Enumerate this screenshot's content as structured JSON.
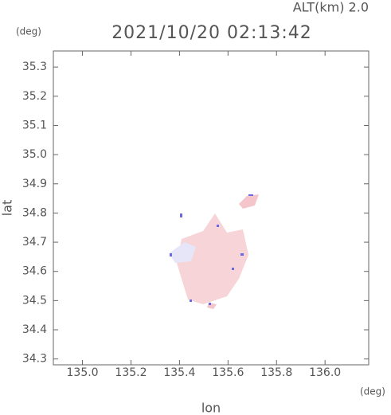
{
  "chart_data": {
    "type": "map",
    "title": "2021/10/20 02:13:42",
    "subtitle": "ALT(km) 2.0",
    "x_label": "lon",
    "y_label": "lat",
    "x_unit": "(deg)",
    "y_unit": "(deg)",
    "xlim": [
      134.88,
      136.18
    ],
    "ylim": [
      34.28,
      35.355
    ],
    "xticks": [
      {
        "value": 135.0,
        "label": "135.0"
      },
      {
        "value": 135.2,
        "label": "135.2"
      },
      {
        "value": 135.4,
        "label": "135.4"
      },
      {
        "value": 135.6,
        "label": "135.6"
      },
      {
        "value": 135.8,
        "label": "135.8"
      },
      {
        "value": 136.0,
        "label": "136.0"
      }
    ],
    "yticks": [
      {
        "value": 34.3,
        "label": "34.3"
      },
      {
        "value": 34.4,
        "label": "34.4"
      },
      {
        "value": 34.5,
        "label": "34.5"
      },
      {
        "value": 34.6,
        "label": "34.6"
      },
      {
        "value": 34.7,
        "label": "34.7"
      },
      {
        "value": 34.8,
        "label": "34.8"
      },
      {
        "value": 34.9,
        "label": "34.9"
      },
      {
        "value": 35.0,
        "label": "35.0"
      },
      {
        "value": 35.1,
        "label": "35.1"
      },
      {
        "value": 35.2,
        "label": "35.2"
      },
      {
        "value": 35.3,
        "label": "35.3"
      }
    ]
  }
}
